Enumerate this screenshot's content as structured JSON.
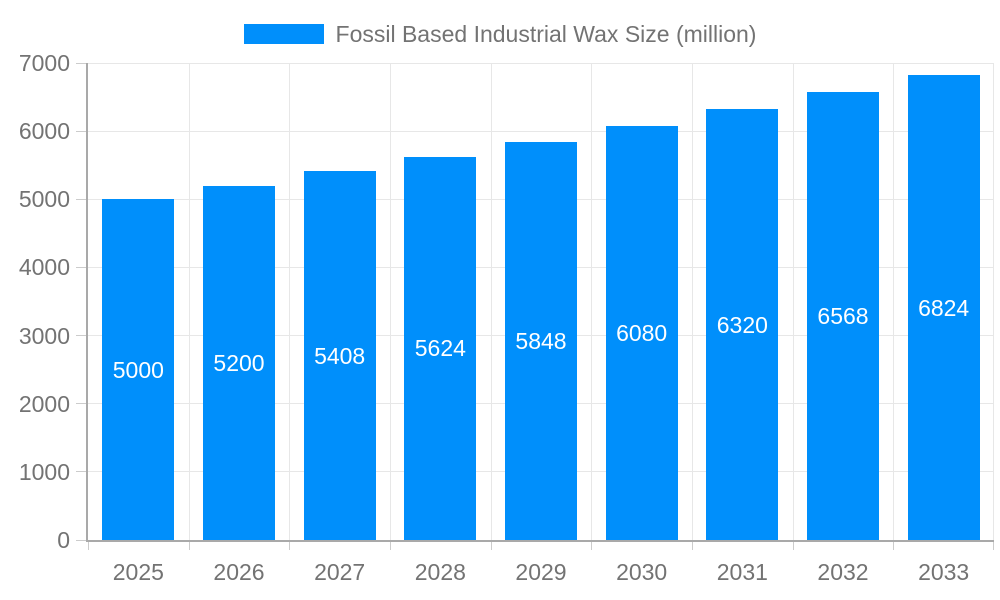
{
  "chart_data": {
    "type": "bar",
    "title": "Fossil Based Industrial Wax Size (million)",
    "legend_entries": [
      "Fossil Based Industrial Wax Size (million)"
    ],
    "legend_position": "top-center",
    "categories": [
      "2025",
      "2026",
      "2027",
      "2028",
      "2029",
      "2030",
      "2031",
      "2032",
      "2033"
    ],
    "series": [
      {
        "name": "Fossil Based Industrial Wax Size (million)",
        "values": [
          5000,
          5200,
          5408,
          5624,
          5848,
          6080,
          6320,
          6568,
          6824
        ]
      }
    ],
    "data_labels": [
      "5000",
      "5200",
      "5408",
      "5624",
      "5848",
      "6080",
      "6320",
      "6568",
      "6824"
    ],
    "xlabel": "",
    "ylabel": "",
    "ylim": [
      0,
      7000
    ],
    "ytick_step": 1000,
    "ytick_labels": [
      "0",
      "1000",
      "2000",
      "3000",
      "4000",
      "5000",
      "6000",
      "7000"
    ],
    "grid": "horizontal and vertical, light gray"
  },
  "colors": {
    "bar": "#008FFB",
    "bar_label_text": "#ffffff",
    "axis_line": "#a9a9a9",
    "grid_line": "#e7e7e7",
    "tick_line": "#cccccc",
    "label_text": "#737373",
    "background": "#ffffff"
  }
}
